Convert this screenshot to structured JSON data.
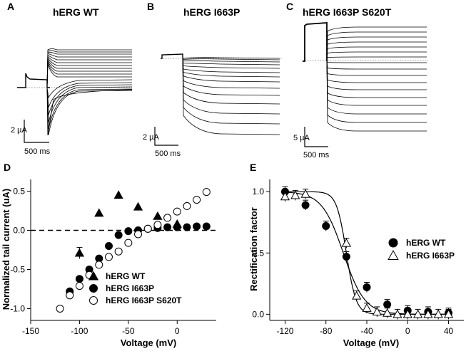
{
  "panels": {
    "A": {
      "label": "A",
      "title": "hERG WT",
      "scale_y": "2 µA",
      "scale_x": "500 ms"
    },
    "B": {
      "label": "B",
      "title": "hERG I663P",
      "scale_y": "2 µA",
      "scale_x": "500 ms"
    },
    "C": {
      "label": "C",
      "title": "hERG I663P S620T",
      "scale_y": "5 µA",
      "scale_x": "500 ms"
    }
  },
  "chart_data": [
    {
      "panel": "D",
      "label": "D",
      "type": "scatter",
      "xlabel": "Voltage (mV)",
      "ylabel": "Normalized tail current (uA)",
      "xlim": [
        -150,
        40
      ],
      "ylim": [
        -1.15,
        0.65
      ],
      "xticks": [
        -150,
        -100,
        -50,
        0
      ],
      "yticks": [
        -1.0,
        -0.5,
        0.0,
        0.5
      ],
      "ytick_labels": [
        "-1.0",
        "-0.5",
        "0.0",
        "0.5"
      ],
      "zero_line": "dashed",
      "legend_position": "lower-center",
      "series": [
        {
          "name": "hERG WT",
          "marker": "triangle-filled",
          "x": [
            -100,
            -80,
            -60,
            -40,
            -20,
            0
          ],
          "y": [
            -0.29,
            0.22,
            0.45,
            0.3,
            0.18,
            0.08
          ]
        },
        {
          "name": "hERG I663P",
          "marker": "circle-filled",
          "x": [
            -110,
            -100,
            -90,
            -80,
            -70,
            -60,
            -50,
            -40,
            -30,
            -20,
            -10,
            0,
            10,
            20,
            30
          ],
          "y": [
            -0.78,
            -0.62,
            -0.5,
            -0.36,
            -0.2,
            -0.06,
            -0.01,
            0.0,
            0.02,
            0.03,
            0.04,
            0.04,
            0.04,
            0.05,
            0.05
          ]
        },
        {
          "name": "hERG I663P S620T",
          "marker": "circle-open",
          "x": [
            -120,
            -110,
            -100,
            -90,
            -80,
            -70,
            -60,
            -50,
            -40,
            -30,
            -20,
            -10,
            0,
            10,
            20,
            30
          ],
          "y": [
            -1.0,
            -0.83,
            -0.71,
            -0.57,
            -0.44,
            -0.34,
            -0.27,
            -0.16,
            -0.05,
            0.02,
            0.07,
            0.16,
            0.24,
            0.31,
            0.39,
            0.49
          ]
        }
      ]
    },
    {
      "panel": "E",
      "label": "E",
      "type": "scatter",
      "xlabel": "Voltage (mV)",
      "ylabel": "Rectification factor",
      "xlim": [
        -135,
        55
      ],
      "ylim": [
        -0.05,
        1.1
      ],
      "xticks": [
        -120,
        -80,
        -40,
        0,
        40
      ],
      "yticks": [
        0.0,
        0.5,
        1.0
      ],
      "ytick_labels": [
        "0.0",
        "0.5",
        "1.0"
      ],
      "legend_position": "center-right",
      "series": [
        {
          "name": "hERG WT",
          "marker": "circle-filled",
          "x": [
            -120,
            -100,
            -80,
            -60,
            -40,
            -20,
            0,
            20,
            40
          ],
          "y": [
            1.0,
            0.89,
            0.72,
            0.47,
            0.22,
            0.08,
            0.03,
            0.02,
            0.01
          ],
          "fit_midpoint": -63,
          "fit_slope": 10.5
        },
        {
          "name": "hERG I663P",
          "marker": "triangle-open",
          "x": [
            -120,
            -110,
            -100,
            -60,
            -50,
            -40,
            -30,
            -20,
            -10,
            0,
            10,
            20,
            30,
            40
          ],
          "y": [
            0.96,
            0.97,
            0.98,
            0.58,
            0.15,
            0.05,
            0.02,
            0.01,
            0.0,
            0.0,
            0.0,
            0.0,
            0.0,
            0.0
          ],
          "fit_midpoint": -60,
          "fit_slope": 4.8
        }
      ]
    }
  ]
}
